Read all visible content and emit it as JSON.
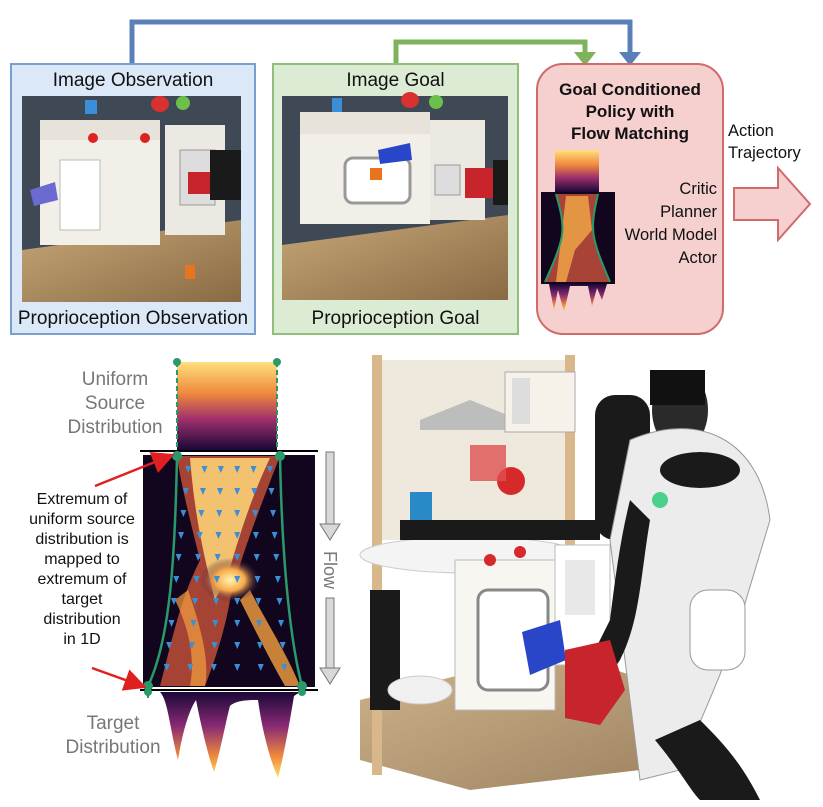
{
  "observation": {
    "title": "Image Observation",
    "subtitle": "Proprioception Observation"
  },
  "goal": {
    "title": "Image Goal",
    "subtitle": "Proprioception Goal"
  },
  "policy": {
    "title_lines": [
      "Goal Conditioned",
      "Policy with",
      "Flow Matching"
    ],
    "modules": [
      "Critic",
      "Planner",
      "World Model",
      "Actor"
    ]
  },
  "output": {
    "label_lines": [
      "Action",
      "Trajectory"
    ]
  },
  "flow_panel": {
    "source_lines": [
      "Uniform",
      "Source",
      "Distribution"
    ],
    "note_lines": [
      "Extremum of",
      "uniform source",
      "distribution is",
      "mapped to",
      "extremum of",
      "target",
      "distribution",
      "in 1D"
    ],
    "flow_label": "Flow",
    "target_lines": [
      "Target",
      "Distribution"
    ]
  },
  "colors": {
    "observation_bg": "#dbe8f8",
    "observation_border": "#7a9fcf",
    "goal_bg": "#dcebd3",
    "goal_border": "#8fbf7a",
    "policy_bg": "#f6cfcf",
    "policy_border": "#cf6b6b",
    "arrow_blue": "#5b80b8",
    "arrow_green": "#7db35a",
    "curve_green": "#2a9a6a",
    "note_arrow": "#e02020"
  }
}
